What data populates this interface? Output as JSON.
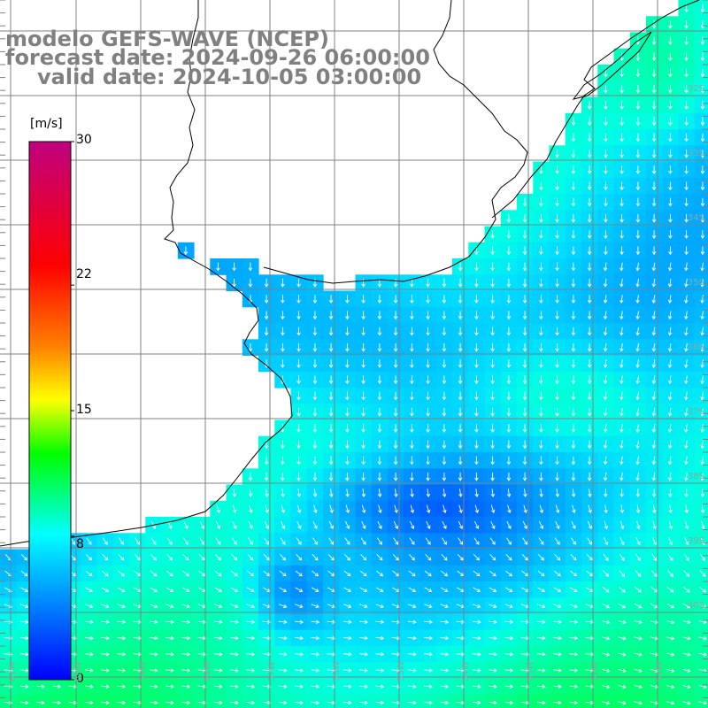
{
  "header": {
    "model_line": "modelo GEFS-WAVE (NCEP)",
    "forecast_line": "forecast date: 2024-09-26 06:00:00",
    "valid_line": "valid date: 2024-10-05 03:00:00"
  },
  "colorbar": {
    "unit": "[m/s]",
    "tick_labels": [
      "30",
      "22",
      "15",
      "8",
      "0"
    ],
    "tick_values": [
      30,
      22,
      15,
      8,
      0
    ],
    "gradient_colors": [
      "#0000ff",
      "#00aaff",
      "#00ffff",
      "#00ff00",
      "#ffff00",
      "#ff8000",
      "#ff0000",
      "#c0007f"
    ]
  },
  "latitude_labels": [
    "32S",
    "33S",
    "34S",
    "35S",
    "36S",
    "37S",
    "38S",
    "39S",
    "40S"
  ],
  "longitude_labels": [
    "61W",
    "60W",
    "59W",
    "58W",
    "57W",
    "56W",
    "55W",
    "54W",
    "53W",
    "52W",
    "51W"
  ],
  "colors": {
    "land": "#ffffff",
    "coastline": "#000000",
    "grid": "#808080",
    "arrows": "#ffffff",
    "title": "#808080"
  },
  "field": {
    "variable": "wind speed with direction arrows",
    "unit": "m/s",
    "prevailing_direction": "southward (north wind) near coast, turning to eastward offshore in the south"
  }
}
